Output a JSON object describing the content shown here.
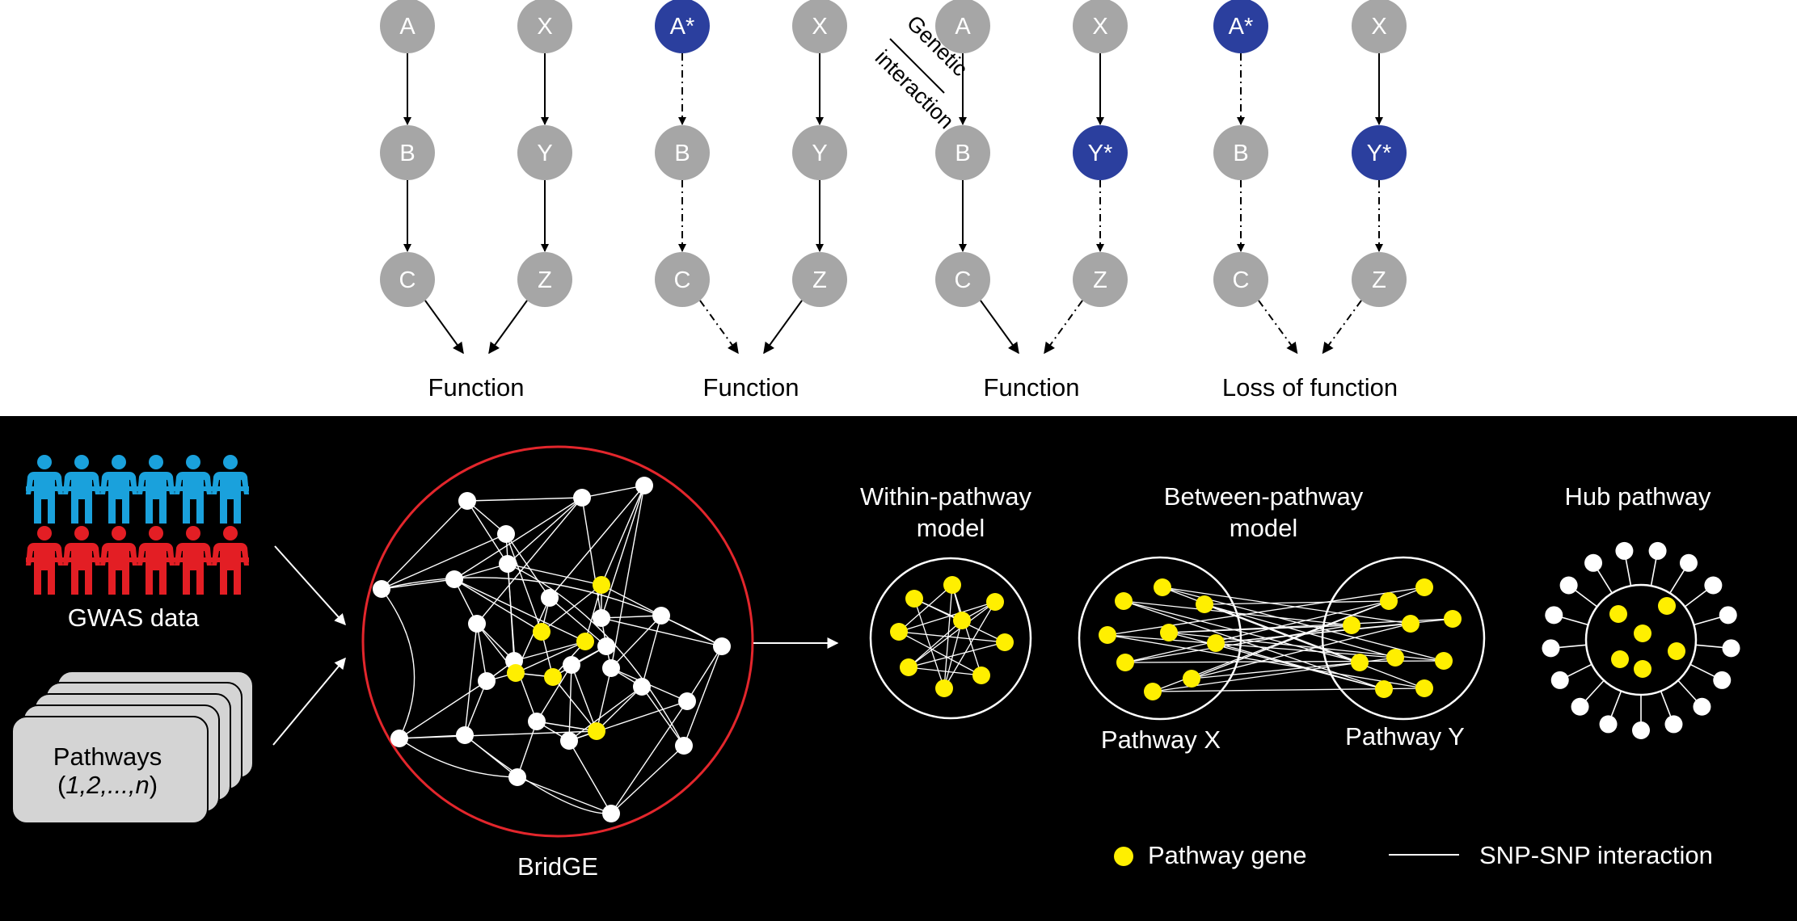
{
  "colors": {
    "node_gray": "#a6a6a6",
    "node_mutant": "#2b3f9e",
    "pathway_gene": "#ffef00",
    "panel_bg": "#000000",
    "bridge_circle": "#e3262c",
    "case_people": "#e31e24",
    "control_people": "#1aa1dc",
    "pathway_card": "#d4d4d4"
  },
  "scenarios": [
    {
      "outcome": "Function",
      "left_chain": [
        {
          "label": "A",
          "mutant": false
        },
        {
          "label": "B",
          "mutant": false
        },
        {
          "label": "C",
          "mutant": false
        }
      ],
      "right_chain": [
        {
          "label": "X",
          "mutant": false
        },
        {
          "label": "Y",
          "mutant": false
        },
        {
          "label": "Z",
          "mutant": false
        }
      ]
    },
    {
      "outcome": "Function",
      "left_chain": [
        {
          "label": "A*",
          "mutant": true
        },
        {
          "label": "B",
          "mutant": false
        },
        {
          "label": "C",
          "mutant": false
        }
      ],
      "right_chain": [
        {
          "label": "X",
          "mutant": false
        },
        {
          "label": "Y",
          "mutant": false
        },
        {
          "label": "Z",
          "mutant": false
        }
      ]
    },
    {
      "outcome": "Function",
      "left_chain": [
        {
          "label": "A",
          "mutant": false
        },
        {
          "label": "B",
          "mutant": false
        },
        {
          "label": "C",
          "mutant": false
        }
      ],
      "right_chain": [
        {
          "label": "X",
          "mutant": false
        },
        {
          "label": "Y*",
          "mutant": true
        },
        {
          "label": "Z",
          "mutant": false
        }
      ]
    },
    {
      "outcome": "Loss of function",
      "left_chain": [
        {
          "label": "A*",
          "mutant": true
        },
        {
          "label": "B",
          "mutant": false
        },
        {
          "label": "C",
          "mutant": false
        }
      ],
      "right_chain": [
        {
          "label": "X",
          "mutant": false
        },
        {
          "label": "Y*",
          "mutant": true
        },
        {
          "label": "Z",
          "mutant": false
        }
      ]
    }
  ],
  "genetic_interaction": {
    "line1": "Genetic",
    "line2": "interaction"
  },
  "workflow": {
    "gwas_label": "GWAS data",
    "pathways_label": "Pathways",
    "pathways_range_open": "(",
    "pathways_range_body": "1,2,...,",
    "pathways_range_n": "n",
    "pathways_range_close": ")",
    "bridge_label": "BridGE"
  },
  "models": {
    "within_line1": "Within-pathway",
    "within_line2": "model",
    "between_line1": "Between-pathway",
    "between_line2": "model",
    "hub_label": "Hub pathway",
    "pathway_x": "Pathway X",
    "pathway_y": "Pathway Y"
  },
  "legend": {
    "gene_label": "Pathway gene",
    "interaction_label": "SNP-SNP interaction"
  }
}
